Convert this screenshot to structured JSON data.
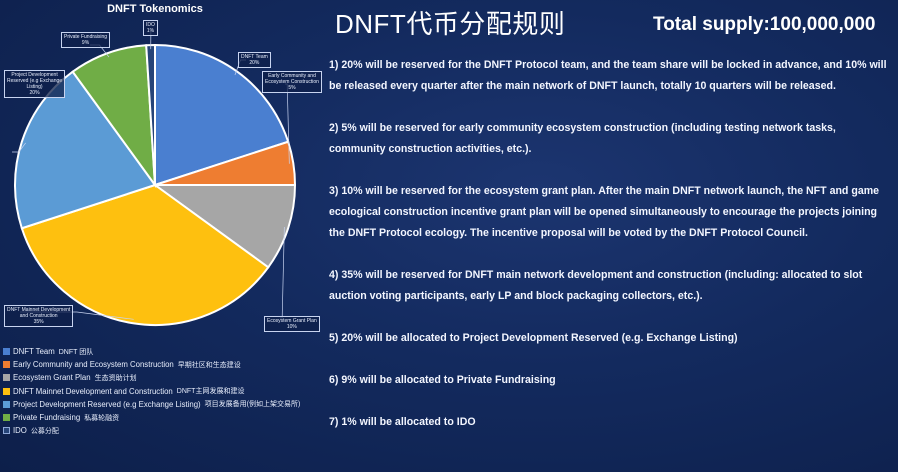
{
  "title_cn": "DNFT代币分配规则",
  "supply_label": "Total supply:100,000,000",
  "chart_data": {
    "type": "pie",
    "title": "DNFT Tokenomics",
    "slices": [
      {
        "label": "DNFT Team",
        "value": 20,
        "color": "#4a7fd0",
        "callout": "DNFT Team\n20%",
        "legend_en": "DNFT Team",
        "legend_cn": "DNFT 团队"
      },
      {
        "label": "Early Community and Ecosystem Construction",
        "value": 5,
        "color": "#ee7d31",
        "callout": "Early Community and\nEcosystem Construction\n5%",
        "legend_en": "Early Community and Ecosystem Construction",
        "legend_cn": "早期社区和生态建设"
      },
      {
        "label": "Ecosystem Grant Plan",
        "value": 10,
        "color": "#a6a6a6",
        "callout": "Ecosystem Grant Plan\n10%",
        "legend_en": "Ecosystem Grant Plan",
        "legend_cn": "生态资助计划"
      },
      {
        "label": "DNFT Mainnet Development and Construction",
        "value": 35,
        "color": "#fec00f",
        "callout": "DNFT Mainnet Development\nand Construction\n35%",
        "legend_en": "DNFT Mainnet Development and Construction",
        "legend_cn": "DNFT主网发展和建设"
      },
      {
        "label": "Project Development Reserved (e.g Exchange Listing)",
        "value": 20,
        "color": "#5b9bd5",
        "callout": "Project Development\nReserved (e.g Exchange\nListing)\n20%",
        "legend_en": "Project Development Reserved (e.g Exchange Listing)",
        "legend_cn": "项目发展备用(例如上架交易所)"
      },
      {
        "label": "Private Fundraising",
        "value": 9,
        "color": "#70ad46",
        "callout": "Private Fundraising\n9%",
        "legend_en": "Private Fundraising",
        "legend_cn": "私募轮融资"
      },
      {
        "label": "IDO",
        "value": 1,
        "color": "#264478",
        "callout": "IDO\n1%",
        "legend_en": "IDO",
        "legend_cn": "公募分配"
      }
    ]
  },
  "notes": [
    "1) 20% will be reserved for the DNFT Protocol team, and the team share will be locked in advance, and 10% will be released every quarter after the main network of DNFT launch, totally 10 quarters will be released.",
    "2) 5% will be reserved for early community ecosystem construction (including testing network tasks, community construction activities, etc.).",
    "3) 10% will be reserved for the ecosystem grant plan. After the main DNFT network launch, the NFT and game ecological construction incentive grant plan will be opened simultaneously to encourage the projects joining the DNFT Protocol ecology. The incentive proposal will be voted by the DNFT Protocol Council.",
    "4) 35% will be reserved for DNFT main network development and construction (including: allocated to slot auction voting participants, early LP and block packaging collectors, etc.).",
    "5) 20% will be allocated to Project Development Reserved (e.g. Exchange Listing)",
    "6) 9% will be allocated to Private Fundraising",
    "7) 1% will be allocated to IDO"
  ]
}
